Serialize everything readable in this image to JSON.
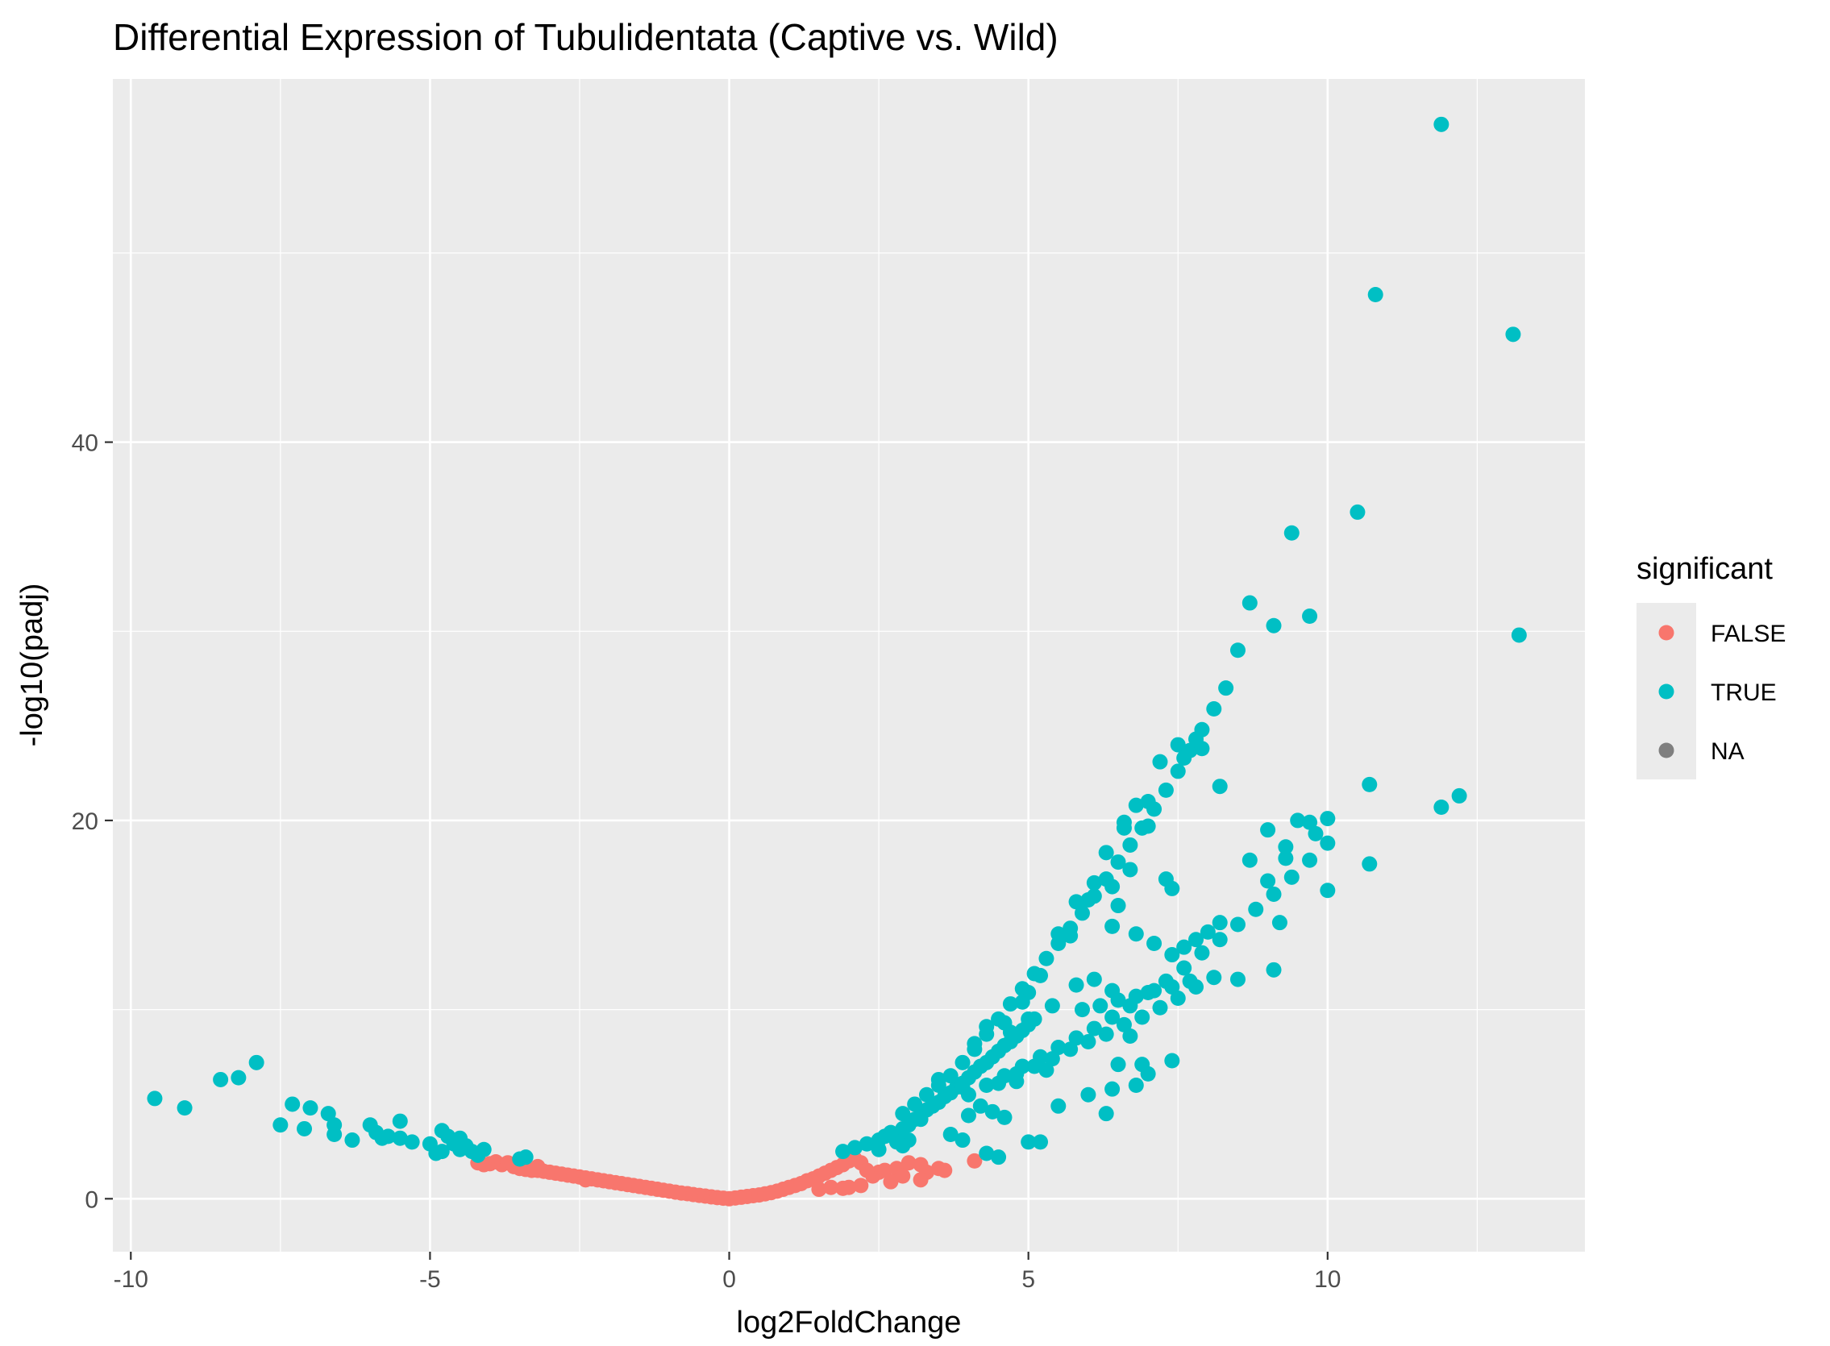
{
  "chart_data": {
    "type": "scatter",
    "title": "Differential Expression of Tubulidentata (Captive vs. Wild)",
    "xlabel": "log2FoldChange",
    "ylabel": "-log10(padj)",
    "xlim": [
      -10.3,
      14.3
    ],
    "ylim": [
      -2.8,
      59.2
    ],
    "x_ticks": [
      -10,
      -5,
      0,
      5,
      10
    ],
    "x_tick_labels": [
      "-10",
      "-5",
      "0",
      "5",
      "10"
    ],
    "y_ticks": [
      0,
      20,
      40
    ],
    "y_tick_labels": [
      "0",
      "20",
      "40"
    ],
    "grid": true,
    "legend": {
      "title": "significant",
      "position": "right",
      "entries": [
        {
          "label": "FALSE",
          "color": "#F8766D"
        },
        {
          "label": "TRUE",
          "color": "#00BFC4"
        },
        {
          "label": "NA",
          "color": "#7f7f7f"
        }
      ]
    },
    "series": [
      {
        "name": "FALSE",
        "color": "#F8766D",
        "points": [
          [
            -4.2,
            1.9
          ],
          [
            -4.0,
            1.85
          ],
          [
            -3.9,
            1.95
          ],
          [
            -3.8,
            1.8
          ],
          [
            -3.7,
            1.9
          ],
          [
            -3.6,
            1.7
          ],
          [
            -3.5,
            1.6
          ],
          [
            -3.4,
            1.55
          ],
          [
            -3.3,
            1.5
          ],
          [
            -3.2,
            1.5
          ],
          [
            -3.1,
            1.45
          ],
          [
            -3.0,
            1.4
          ],
          [
            -2.9,
            1.35
          ],
          [
            -2.8,
            1.3
          ],
          [
            -2.7,
            1.25
          ],
          [
            -2.6,
            1.2
          ],
          [
            -2.5,
            1.15
          ],
          [
            -2.4,
            1.1
          ],
          [
            -2.3,
            1.05
          ],
          [
            -2.2,
            1.0
          ],
          [
            -2.1,
            0.95
          ],
          [
            -2.0,
            0.9
          ],
          [
            -1.9,
            0.85
          ],
          [
            -1.8,
            0.8
          ],
          [
            -1.7,
            0.75
          ],
          [
            -1.6,
            0.7
          ],
          [
            -1.5,
            0.65
          ],
          [
            -1.4,
            0.6
          ],
          [
            -1.3,
            0.55
          ],
          [
            -1.2,
            0.5
          ],
          [
            -1.1,
            0.45
          ],
          [
            -1.0,
            0.4
          ],
          [
            -0.9,
            0.35
          ],
          [
            -0.8,
            0.3
          ],
          [
            -0.7,
            0.27
          ],
          [
            -0.6,
            0.22
          ],
          [
            -0.5,
            0.18
          ],
          [
            -0.4,
            0.14
          ],
          [
            -0.3,
            0.1
          ],
          [
            -0.2,
            0.06
          ],
          [
            -0.1,
            0.03
          ],
          [
            0.0,
            0.0
          ],
          [
            0.1,
            0.04
          ],
          [
            0.2,
            0.08
          ],
          [
            0.3,
            0.12
          ],
          [
            0.4,
            0.16
          ],
          [
            0.5,
            0.2
          ],
          [
            0.6,
            0.26
          ],
          [
            0.7,
            0.32
          ],
          [
            0.8,
            0.4
          ],
          [
            0.9,
            0.5
          ],
          [
            1.0,
            0.6
          ],
          [
            1.1,
            0.7
          ],
          [
            1.2,
            0.8
          ],
          [
            1.3,
            0.95
          ],
          [
            1.4,
            1.05
          ],
          [
            1.5,
            1.2
          ],
          [
            1.6,
            1.35
          ],
          [
            1.7,
            1.5
          ],
          [
            1.8,
            1.65
          ],
          [
            1.9,
            1.8
          ],
          [
            2.0,
            2.0
          ],
          [
            2.1,
            2.1
          ],
          [
            2.2,
            1.9
          ],
          [
            1.5,
            0.5
          ],
          [
            1.7,
            0.6
          ],
          [
            1.9,
            0.55
          ],
          [
            2.0,
            0.6
          ],
          [
            2.2,
            0.7
          ],
          [
            2.4,
            1.2
          ],
          [
            2.5,
            1.4
          ],
          [
            2.6,
            1.5
          ],
          [
            2.8,
            1.6
          ],
          [
            2.9,
            1.2
          ],
          [
            3.0,
            1.9
          ],
          [
            3.2,
            1.8
          ],
          [
            3.3,
            1.4
          ],
          [
            3.5,
            1.6
          ],
          [
            3.6,
            1.5
          ],
          [
            3.2,
            1.0
          ],
          [
            2.7,
            0.9
          ],
          [
            2.3,
            1.5
          ],
          [
            4.1,
            2.0
          ],
          [
            -4.1,
            1.8
          ],
          [
            -3.2,
            1.7
          ],
          [
            -2.4,
            1.0
          ]
        ]
      },
      {
        "name": "TRUE",
        "color": "#00BFC4",
        "points": [
          [
            -9.6,
            5.3
          ],
          [
            -9.1,
            4.8
          ],
          [
            -8.5,
            6.3
          ],
          [
            -8.2,
            6.4
          ],
          [
            -7.9,
            7.2
          ],
          [
            -7.5,
            3.9
          ],
          [
            -7.3,
            5.0
          ],
          [
            -7.1,
            3.7
          ],
          [
            -7.0,
            4.8
          ],
          [
            -6.7,
            4.5
          ],
          [
            -6.6,
            3.9
          ],
          [
            -6.6,
            3.4
          ],
          [
            -6.3,
            3.1
          ],
          [
            -6.0,
            3.9
          ],
          [
            -5.9,
            3.5
          ],
          [
            -5.7,
            3.3
          ],
          [
            -5.5,
            3.2
          ],
          [
            -5.5,
            4.1
          ],
          [
            -5.3,
            3.0
          ],
          [
            -5.0,
            2.9
          ],
          [
            -4.9,
            2.4
          ],
          [
            -4.8,
            2.5
          ],
          [
            -4.8,
            3.6
          ],
          [
            -4.6,
            2.9
          ],
          [
            -4.5,
            2.6
          ],
          [
            -4.5,
            3.2
          ],
          [
            -4.4,
            2.8
          ],
          [
            -4.3,
            2.5
          ],
          [
            -4.1,
            2.6
          ],
          [
            -3.5,
            2.1
          ],
          [
            -3.4,
            2.2
          ],
          [
            -4.7,
            3.3
          ],
          [
            -5.8,
            3.2
          ],
          [
            -4.2,
            2.3
          ],
          [
            1.9,
            2.5
          ],
          [
            2.1,
            2.7
          ],
          [
            2.3,
            2.9
          ],
          [
            2.5,
            3.1
          ],
          [
            2.6,
            3.3
          ],
          [
            2.7,
            3.5
          ],
          [
            2.8,
            3.2
          ],
          [
            2.9,
            3.7
          ],
          [
            3.0,
            3.9
          ],
          [
            3.1,
            4.2
          ],
          [
            3.2,
            4.4
          ],
          [
            3.3,
            4.7
          ],
          [
            3.4,
            4.9
          ],
          [
            3.5,
            5.1
          ],
          [
            3.6,
            5.4
          ],
          [
            3.7,
            5.6
          ],
          [
            3.8,
            5.9
          ],
          [
            3.9,
            6.1
          ],
          [
            4.0,
            6.4
          ],
          [
            4.1,
            6.7
          ],
          [
            4.2,
            7.0
          ],
          [
            4.3,
            7.2
          ],
          [
            4.4,
            7.5
          ],
          [
            4.5,
            7.8
          ],
          [
            4.6,
            8.1
          ],
          [
            4.7,
            8.3
          ],
          [
            4.8,
            8.6
          ],
          [
            4.9,
            8.9
          ],
          [
            5.0,
            9.2
          ],
          [
            5.1,
            9.5
          ],
          [
            2.9,
            4.5
          ],
          [
            3.1,
            5.0
          ],
          [
            3.3,
            5.5
          ],
          [
            3.5,
            6.0
          ],
          [
            3.7,
            6.5
          ],
          [
            3.9,
            7.2
          ],
          [
            4.1,
            7.9
          ],
          [
            4.3,
            8.7
          ],
          [
            4.5,
            9.5
          ],
          [
            4.7,
            10.3
          ],
          [
            4.9,
            11.1
          ],
          [
            5.1,
            11.9
          ],
          [
            5.3,
            12.7
          ],
          [
            5.5,
            13.5
          ],
          [
            5.7,
            14.3
          ],
          [
            5.9,
            15.1
          ],
          [
            6.1,
            16.0
          ],
          [
            6.3,
            16.9
          ],
          [
            6.5,
            17.8
          ],
          [
            6.7,
            18.7
          ],
          [
            6.9,
            19.6
          ],
          [
            7.1,
            20.6
          ],
          [
            7.3,
            21.6
          ],
          [
            7.5,
            22.6
          ],
          [
            7.7,
            23.7
          ],
          [
            7.9,
            24.8
          ],
          [
            8.1,
            25.9
          ],
          [
            8.3,
            27.0
          ],
          [
            4.0,
            5.5
          ],
          [
            4.3,
            6.0
          ],
          [
            4.6,
            6.5
          ],
          [
            4.9,
            7.0
          ],
          [
            5.2,
            7.5
          ],
          [
            5.5,
            8.0
          ],
          [
            5.8,
            8.5
          ],
          [
            6.1,
            9.0
          ],
          [
            6.4,
            9.6
          ],
          [
            6.7,
            10.2
          ],
          [
            7.0,
            10.9
          ],
          [
            7.3,
            11.5
          ],
          [
            7.6,
            12.2
          ],
          [
            7.9,
            13.0
          ],
          [
            8.2,
            13.7
          ],
          [
            8.5,
            14.5
          ],
          [
            8.8,
            15.3
          ],
          [
            9.1,
            16.1
          ],
          [
            9.4,
            17.0
          ],
          [
            9.7,
            17.9
          ],
          [
            10.0,
            18.8
          ],
          [
            4.5,
            6.1
          ],
          [
            4.8,
            6.6
          ],
          [
            5.1,
            7.0
          ],
          [
            5.4,
            7.4
          ],
          [
            5.7,
            7.9
          ],
          [
            6.0,
            8.3
          ],
          [
            6.3,
            8.7
          ],
          [
            6.6,
            9.2
          ],
          [
            6.9,
            9.6
          ],
          [
            7.2,
            10.1
          ],
          [
            7.5,
            10.6
          ],
          [
            7.8,
            11.2
          ],
          [
            8.1,
            11.7
          ],
          [
            5.9,
            10.0
          ],
          [
            6.2,
            10.2
          ],
          [
            6.5,
            10.5
          ],
          [
            6.8,
            10.7
          ],
          [
            7.1,
            11.0
          ],
          [
            7.4,
            11.2
          ],
          [
            7.7,
            11.5
          ],
          [
            7.4,
            12.9
          ],
          [
            7.6,
            13.3
          ],
          [
            7.8,
            13.7
          ],
          [
            8.0,
            14.1
          ],
          [
            8.2,
            14.6
          ],
          [
            8.5,
            29.0
          ],
          [
            8.7,
            31.5
          ],
          [
            9.1,
            30.3
          ],
          [
            9.4,
            35.2
          ],
          [
            9.7,
            30.8
          ],
          [
            10.5,
            36.3
          ],
          [
            11.9,
            56.8
          ],
          [
            10.8,
            47.8
          ],
          [
            13.1,
            45.7
          ],
          [
            13.2,
            29.8
          ],
          [
            12.2,
            21.3
          ],
          [
            11.9,
            20.7
          ],
          [
            10.7,
            21.9
          ],
          [
            10.7,
            17.7
          ],
          [
            10.0,
            16.3
          ],
          [
            9.0,
            16.8
          ],
          [
            9.2,
            14.6
          ],
          [
            9.1,
            12.1
          ],
          [
            8.5,
            11.6
          ],
          [
            8.2,
            21.8
          ],
          [
            7.8,
            24.3
          ],
          [
            7.9,
            23.8
          ],
          [
            7.5,
            24.0
          ],
          [
            7.6,
            23.3
          ],
          [
            7.2,
            23.1
          ],
          [
            7.0,
            21.0
          ],
          [
            6.8,
            20.8
          ],
          [
            6.6,
            19.6
          ],
          [
            6.6,
            19.9
          ],
          [
            6.7,
            17.4
          ],
          [
            6.5,
            15.5
          ],
          [
            6.4,
            16.5
          ],
          [
            6.3,
            18.3
          ],
          [
            6.0,
            15.8
          ],
          [
            5.8,
            15.7
          ],
          [
            6.1,
            16.7
          ],
          [
            6.4,
            14.4
          ],
          [
            5.7,
            13.9
          ],
          [
            5.5,
            14.0
          ],
          [
            5.2,
            11.8
          ],
          [
            5.0,
            10.9
          ],
          [
            4.9,
            10.4
          ],
          [
            4.6,
            9.3
          ],
          [
            4.1,
            8.2
          ],
          [
            3.5,
            6.3
          ],
          [
            3.2,
            4.2
          ],
          [
            3.9,
            5.9
          ],
          [
            4.3,
            9.1
          ],
          [
            4.7,
            8.8
          ],
          [
            5.0,
            9.5
          ],
          [
            5.4,
            10.2
          ],
          [
            5.8,
            11.3
          ],
          [
            6.1,
            11.6
          ],
          [
            6.4,
            11.0
          ],
          [
            6.8,
            14.0
          ],
          [
            7.1,
            13.5
          ],
          [
            7.3,
            16.9
          ],
          [
            7.4,
            16.4
          ],
          [
            7.0,
            19.7
          ],
          [
            8.7,
            17.9
          ],
          [
            9.0,
            19.5
          ],
          [
            9.3,
            18.0
          ],
          [
            9.3,
            18.6
          ],
          [
            9.5,
            20.0
          ],
          [
            9.8,
            19.3
          ],
          [
            10.0,
            20.1
          ],
          [
            9.7,
            19.9
          ],
          [
            6.5,
            7.1
          ],
          [
            6.4,
            5.8
          ],
          [
            6.8,
            6.0
          ],
          [
            6.9,
            7.1
          ],
          [
            7.0,
            6.6
          ],
          [
            7.4,
            7.3
          ],
          [
            6.3,
            4.5
          ],
          [
            6.0,
            5.5
          ],
          [
            5.5,
            4.9
          ],
          [
            5.0,
            3.0
          ],
          [
            4.3,
            2.4
          ],
          [
            4.5,
            2.2
          ],
          [
            4.6,
            4.3
          ],
          [
            4.4,
            4.6
          ],
          [
            3.9,
            3.1
          ],
          [
            3.7,
            3.4
          ],
          [
            3.0,
            3.1
          ],
          [
            2.9,
            2.8
          ],
          [
            2.5,
            2.6
          ],
          [
            2.8,
            3.0
          ],
          [
            5.2,
            3.0
          ],
          [
            4.8,
            6.2
          ],
          [
            5.3,
            6.8
          ],
          [
            6.7,
            8.6
          ],
          [
            4.0,
            4.4
          ],
          [
            4.2,
            4.9
          ]
        ]
      }
    ]
  }
}
